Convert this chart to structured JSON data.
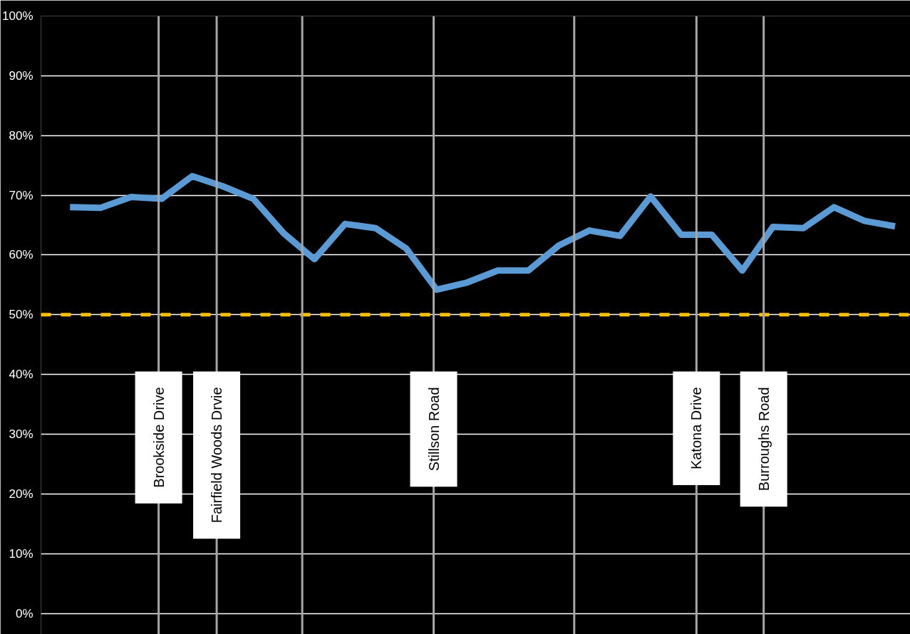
{
  "chart_data": {
    "type": "line",
    "categories": [
      null,
      null,
      null,
      null,
      null,
      null,
      null,
      null,
      null,
      null,
      null,
      null,
      null,
      null,
      null,
      null,
      null,
      null,
      null,
      null,
      null,
      null,
      null,
      null,
      null,
      null,
      null,
      null
    ],
    "series": [
      {
        "color": "#5b9bd5",
        "values": [
          68,
          67.9,
          69.7,
          69.4,
          73.2,
          71.5,
          69.4,
          63.6,
          59.3,
          65.2,
          64.5,
          61.1,
          54.2,
          55.4,
          57.4,
          57.4,
          61.6,
          64.1,
          63.2,
          69.8,
          63.4,
          63.4,
          57.4,
          64.7,
          64.5,
          68,
          65.7,
          64.8
        ]
      }
    ],
    "ylim": [
      -3.5,
      100
    ],
    "yticks": [
      {
        "value": 0,
        "label": "0%"
      },
      {
        "value": 10,
        "label": "10%"
      },
      {
        "value": 20,
        "label": "20%"
      },
      {
        "value": 30,
        "label": "30%"
      },
      {
        "value": 40,
        "label": "40%"
      },
      {
        "value": 50,
        "label": "50%"
      },
      {
        "value": 60,
        "label": "60%"
      },
      {
        "value": 70,
        "label": "70%"
      },
      {
        "value": 80,
        "label": "80%"
      },
      {
        "value": 90,
        "label": "90%"
      },
      {
        "value": 100,
        "label": "100%"
      }
    ],
    "tick_labels": "y",
    "grid": "y",
    "marker": "none",
    "line_style": "solid",
    "ref_lines": [
      {
        "axis": "y",
        "value": 50,
        "label": null,
        "color": "#ffc000",
        "line_style": "dashed"
      }
    ],
    "annotations": [
      "Brookside Drive",
      "Fairfield Woods Drvie",
      "Stillson Road",
      "Katona Drive",
      "Burroughs Road"
    ]
  }
}
